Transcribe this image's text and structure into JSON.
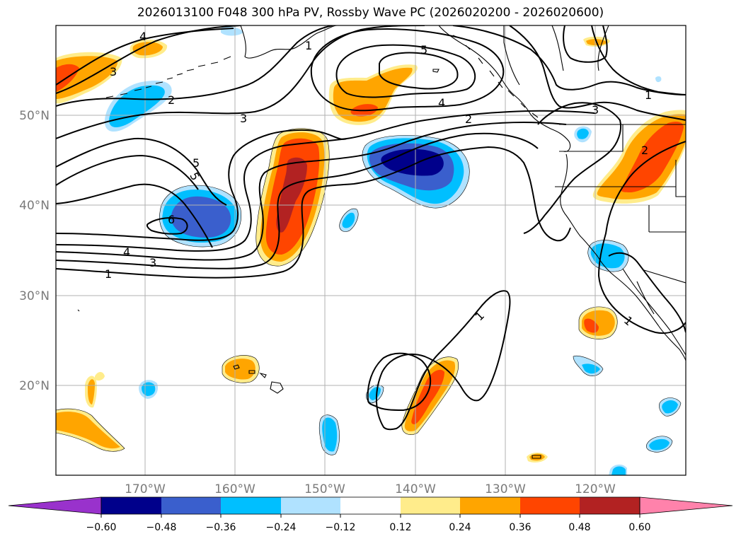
{
  "title": "2026013100 F048 300 hPa PV, Rossby Wave PC (2026020200 - 2026020600)",
  "colors": {
    "neg_extend": "#9932cc",
    "lvl_n060_n048": "#00008b",
    "lvl_n048_n036": "#3a5fcd",
    "lvl_n036_n024": "#00bfff",
    "lvl_n024_n012": "#b0e2ff",
    "lvl_n012_012": "#ffffff",
    "lvl_012_024": "#ffec8b",
    "lvl_024_036": "#ffa500",
    "lvl_036_048": "#ff4500",
    "lvl_048_060": "#b22222",
    "pos_extend": "#ff82ab"
  },
  "lat_labels": [
    "50°N",
    "40°N",
    "30°N",
    "20°N"
  ],
  "lon_labels": [
    "170°W",
    "160°W",
    "150°W",
    "140°W",
    "130°W",
    "120°W"
  ],
  "contour_labels": [
    "1",
    "2",
    "3",
    "4",
    "5",
    "6",
    "4",
    "3",
    "1",
    "5",
    "4",
    "2",
    "3",
    "1",
    "1",
    "1",
    "3",
    "5",
    "2"
  ],
  "colorbar_ticks": [
    "−0.60",
    "−0.48",
    "−0.36",
    "−0.24",
    "−0.12",
    "0.12",
    "0.24",
    "0.36",
    "0.48",
    "0.60"
  ]
}
